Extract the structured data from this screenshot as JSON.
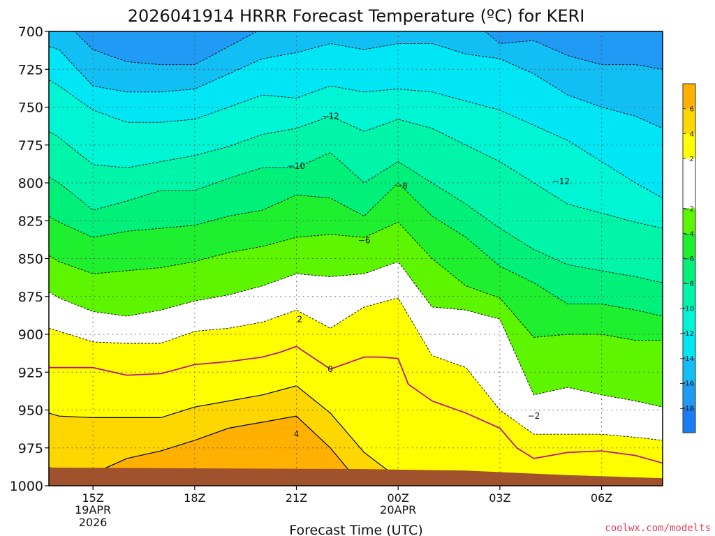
{
  "chart_data": {
    "type": "contour",
    "title": "2026041914 HRRR Forecast Temperature (ºC) for KERI",
    "xlabel": "Forecast Time (UTC)",
    "ylabel": "",
    "credit": "coolwx.com/modelts",
    "x_range": [
      -0.3,
      17.8
    ],
    "y_range": [
      700,
      1000
    ],
    "y_ticks": [
      700,
      725,
      750,
      775,
      800,
      825,
      850,
      875,
      900,
      925,
      950,
      975,
      1000
    ],
    "x_ticks": [
      {
        "x": 1,
        "label": "15Z",
        "sub1": "19APR",
        "sub2": "2026"
      },
      {
        "x": 4,
        "label": "18Z",
        "sub1": "",
        "sub2": ""
      },
      {
        "x": 7,
        "label": "21Z",
        "sub1": "",
        "sub2": ""
      },
      {
        "x": 10,
        "label": "00Z",
        "sub1": "20APR",
        "sub2": ""
      },
      {
        "x": 13,
        "label": "03Z",
        "sub1": "",
        "sub2": ""
      },
      {
        "x": 16,
        "label": "06Z",
        "sub1": "",
        "sub2": ""
      }
    ],
    "grid": true,
    "x_grid": [
      1,
      4,
      7,
      10,
      13,
      16
    ],
    "legend": "right",
    "colorbar": {
      "bins": [
        {
          "lo": -20,
          "hi": -18,
          "color": "#1a7cf5"
        },
        {
          "lo": -18,
          "hi": -16,
          "color": "#1f9af5"
        },
        {
          "lo": -16,
          "hi": -14,
          "color": "#12bff5"
        },
        {
          "lo": -14,
          "hi": -12,
          "color": "#00e6f5"
        },
        {
          "lo": -12,
          "hi": -10,
          "color": "#00f5d5"
        },
        {
          "lo": -10,
          "hi": -8,
          "color": "#00f5a8"
        },
        {
          "lo": -8,
          "hi": -6,
          "color": "#00f07a"
        },
        {
          "lo": -6,
          "hi": -4,
          "color": "#1ef02f"
        },
        {
          "lo": -4,
          "hi": -2,
          "color": "#5df500"
        },
        {
          "lo": -2,
          "hi": 2,
          "color": "#ffffff"
        },
        {
          "lo": 2,
          "hi": 4,
          "color": "#ffff00"
        },
        {
          "lo": 4,
          "hi": 6,
          "color": "#ffd700"
        },
        {
          "lo": 6,
          "hi": 8,
          "color": "#ffb000"
        }
      ],
      "labels": [
        "6",
        "4",
        "2",
        "−2",
        "−4",
        "−6",
        "−8",
        "−10",
        "−12",
        "−14",
        "−16",
        "−18"
      ],
      "label_values": [
        6,
        4,
        2,
        -2,
        -4,
        -6,
        -8,
        -10,
        -12,
        -14,
        -16,
        -18
      ]
    },
    "columns_x": [
      -0.3,
      0,
      1,
      2,
      3,
      4,
      5,
      6,
      7,
      8,
      9,
      10,
      11,
      12,
      13,
      14,
      15,
      16,
      17,
      17.8
    ],
    "contours": [
      {
        "level": -18,
        "p": [
          678,
          680,
          700,
          700,
          700,
          700,
          700,
          688,
          682,
          672,
          662,
          662,
          662,
          665,
          670,
          678,
          688,
          700,
          700,
          700
        ]
      },
      {
        "level": -16,
        "p": [
          688,
          690,
          712,
          720,
          722,
          722,
          710,
          698,
          690,
          690,
          682,
          684,
          686,
          690,
          708,
          706,
          716,
          722,
          722,
          725
        ]
      },
      {
        "level": -14,
        "p": [
          710,
          712,
          736,
          740,
          740,
          738,
          728,
          718,
          714,
          708,
          712,
          708,
          708,
          715,
          718,
          728,
          742,
          750,
          756,
          764
        ]
      },
      {
        "level": -12,
        "p": [
          732,
          736,
          752,
          760,
          760,
          758,
          750,
          742,
          744,
          736,
          740,
          738,
          740,
          746,
          752,
          762,
          772,
          786,
          800,
          810
        ]
      },
      {
        "level": -10,
        "p": [
          766,
          770,
          788,
          790,
          786,
          782,
          776,
          768,
          764,
          756,
          766,
          758,
          764,
          775,
          786,
          800,
          814,
          820,
          826,
          830
        ]
      },
      {
        "level": -8,
        "p": [
          796,
          800,
          818,
          812,
          805,
          805,
          797,
          790,
          790,
          780,
          800,
          786,
          800,
          814,
          830,
          844,
          854,
          858,
          862,
          866
        ]
      },
      {
        "level": -6,
        "p": [
          822,
          826,
          836,
          832,
          830,
          828,
          822,
          818,
          808,
          810,
          822,
          800,
          822,
          836,
          855,
          866,
          880,
          880,
          884,
          888
        ]
      },
      {
        "level": -4,
        "p": [
          848,
          852,
          860,
          858,
          856,
          852,
          846,
          842,
          836,
          834,
          836,
          826,
          850,
          868,
          876,
          902,
          900,
          900,
          904,
          904
        ]
      },
      {
        "level": -2,
        "p": [
          872,
          876,
          885,
          888,
          884,
          878,
          874,
          868,
          860,
          862,
          860,
          852,
          882,
          884,
          890,
          940,
          935,
          940,
          944,
          948
        ]
      },
      {
        "level": 2,
        "p": [
          896,
          898,
          905,
          906,
          906,
          898,
          896,
          892,
          884,
          896,
          882,
          876,
          914,
          922,
          950,
          966,
          966,
          966,
          968,
          970
        ]
      },
      {
        "level": 4,
        "p": [
          952,
          954,
          955,
          955,
          955,
          948,
          944,
          940,
          934,
          952,
          978,
          995,
          1002,
          1002,
          1002,
          1002,
          1002,
          1002,
          1002,
          1002
        ]
      },
      {
        "level": 6,
        "p": [
          988,
          989,
          992,
          982,
          977,
          970,
          962,
          958,
          954,
          975,
          1002,
          1002,
          1002,
          1002,
          1002,
          1002,
          1002,
          1002,
          1002,
          1002
        ]
      }
    ],
    "solid_levels": [
      4,
      6,
      8
    ],
    "zero_line": {
      "level": 0,
      "color": "#c0137a",
      "x": [
        -0.3,
        0,
        1,
        2,
        3,
        4,
        5,
        6,
        6.5,
        7,
        8,
        9,
        9.5,
        10,
        10.3,
        11,
        12,
        13,
        13.5,
        14,
        15,
        16,
        17,
        17.8
      ],
      "p": [
        922,
        922,
        922,
        927,
        926,
        920,
        918,
        915,
        912,
        908,
        923,
        915,
        915,
        916,
        933,
        944,
        952,
        962,
        975,
        982,
        978,
        977,
        980,
        985
      ]
    },
    "warm_line": {
      "level": 8,
      "x": [
        5.2,
        6,
        7,
        7.8,
        8.3
      ],
      "p": [
        999,
        996,
        995,
        996,
        1000
      ]
    },
    "contour_labels": [
      {
        "text": "−12",
        "x": 8.0,
        "p": 756
      },
      {
        "text": "−10",
        "x": 7.0,
        "p": 789
      },
      {
        "text": "−8",
        "x": 10.1,
        "p": 802
      },
      {
        "text": "−6",
        "x": 9.0,
        "p": 838
      },
      {
        "text": "−12",
        "x": 14.8,
        "p": 799
      },
      {
        "text": "−2",
        "x": 14.0,
        "p": 954
      },
      {
        "text": "2",
        "x": 7.1,
        "p": 890
      },
      {
        "text": "0",
        "x": 8.0,
        "p": 923
      },
      {
        "text": "4",
        "x": 7.0,
        "p": 966
      }
    ],
    "ground": [
      {
        "x": -0.3,
        "p": 988
      },
      {
        "x": 9,
        "p": 989
      },
      {
        "x": 12,
        "p": 990
      },
      {
        "x": 15,
        "p": 993
      },
      {
        "x": 17.8,
        "p": 995
      }
    ],
    "ground_color": "#a0522d"
  }
}
